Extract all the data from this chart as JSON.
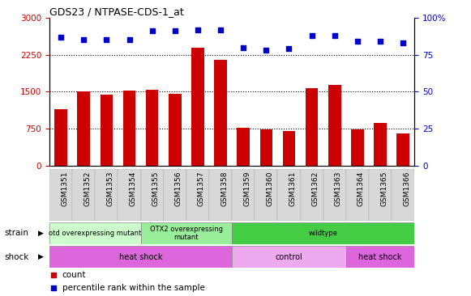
{
  "title": "GDS23 / NTPASE-CDS-1_at",
  "categories": [
    "GSM1351",
    "GSM1352",
    "GSM1353",
    "GSM1354",
    "GSM1355",
    "GSM1356",
    "GSM1357",
    "GSM1358",
    "GSM1359",
    "GSM1360",
    "GSM1361",
    "GSM1362",
    "GSM1363",
    "GSM1364",
    "GSM1365",
    "GSM1366"
  ],
  "counts": [
    1150,
    1500,
    1450,
    1530,
    1540,
    1460,
    2390,
    2150,
    770,
    740,
    700,
    1570,
    1640,
    740,
    870,
    650
  ],
  "percentiles": [
    87,
    85,
    85,
    85,
    91,
    91,
    92,
    92,
    80,
    78,
    79,
    88,
    88,
    84,
    84,
    83
  ],
  "bar_color": "#cc0000",
  "dot_color": "#0000cc",
  "left_ylim": [
    0,
    3000
  ],
  "left_yticks": [
    0,
    750,
    1500,
    2250,
    3000
  ],
  "right_ylim": [
    0,
    100
  ],
  "right_yticks": [
    0,
    25,
    50,
    75,
    100
  ],
  "dotted_lines": [
    750,
    1500,
    2250
  ],
  "strain_groups": [
    {
      "label": "otd overexpressing mutant",
      "start": 0,
      "end": 4,
      "color": "#ccffcc"
    },
    {
      "label": "OTX2 overexpressing\nmutant",
      "start": 4,
      "end": 8,
      "color": "#99ee99"
    },
    {
      "label": "wildtype",
      "start": 8,
      "end": 16,
      "color": "#44cc44"
    }
  ],
  "shock_groups": [
    {
      "label": "heat shock",
      "start": 0,
      "end": 8,
      "color": "#dd66dd"
    },
    {
      "label": "control",
      "start": 8,
      "end": 13,
      "color": "#eeaaee"
    },
    {
      "label": "heat shock",
      "start": 13,
      "end": 16,
      "color": "#dd66dd"
    }
  ],
  "legend_items": [
    {
      "color": "#cc0000",
      "label": "count"
    },
    {
      "color": "#0000cc",
      "label": "percentile rank within the sample"
    }
  ],
  "background_color": "#ffffff",
  "tick_color_left": "#cc0000",
  "tick_color_right": "#0000cc",
  "bar_width": 0.55,
  "figsize": [
    5.81,
    3.66
  ],
  "dpi": 100
}
